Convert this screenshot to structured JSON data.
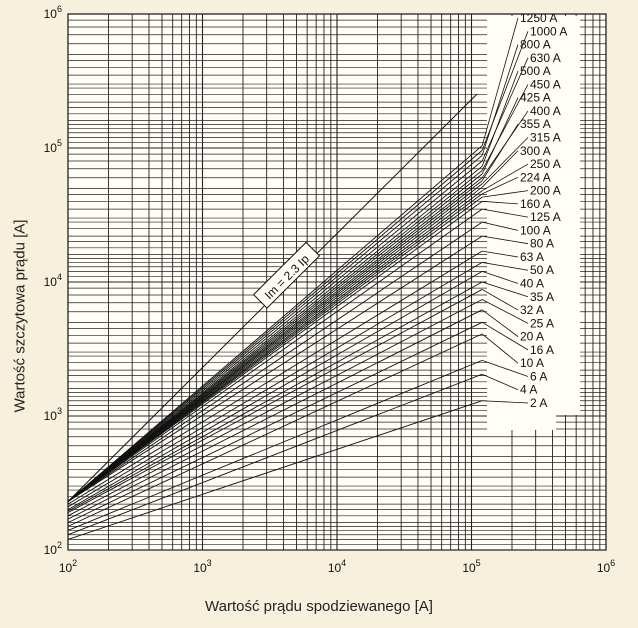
{
  "chart_data": {
    "type": "line",
    "title": "",
    "xlabel": "Wartość prądu spodziewanego [A]",
    "ylabel": "Wartość szczytowa prądu [A]",
    "xscale": "log",
    "yscale": "log",
    "xlim": [
      100,
      1000000
    ],
    "ylim": [
      100,
      1000000
    ],
    "grid": true,
    "x_ticks": [
      {
        "value": 100,
        "base": "10",
        "exp": "2"
      },
      {
        "value": 1000,
        "base": "10",
        "exp": "3"
      },
      {
        "value": 10000,
        "base": "10",
        "exp": "4"
      },
      {
        "value": 100000,
        "base": "10",
        "exp": "5"
      },
      {
        "value": 1000000,
        "base": "10",
        "exp": "6"
      }
    ],
    "y_ticks": [
      {
        "value": 100,
        "base": "10",
        "exp": "2"
      },
      {
        "value": 1000,
        "base": "10",
        "exp": "3"
      },
      {
        "value": 10000,
        "base": "10",
        "exp": "4"
      },
      {
        "value": 100000,
        "base": "10",
        "exp": "5"
      },
      {
        "value": 1000000,
        "base": "10",
        "exp": "6"
      }
    ],
    "reference_line": {
      "label": "Im = 2.3 Ip",
      "x": [
        100,
        110000
      ],
      "y": [
        230,
        253000
      ]
    },
    "series": [
      {
        "name": "1250 A",
        "x": [
          100,
          120000
        ],
        "y": [
          230,
          104000
        ]
      },
      {
        "name": "1000 A",
        "x": [
          100,
          120000
        ],
        "y": [
          230,
          96000
        ]
      },
      {
        "name": "800 A",
        "x": [
          100,
          120000
        ],
        "y": [
          230,
          88000
        ]
      },
      {
        "name": "630 A",
        "x": [
          100,
          120000
        ],
        "y": [
          230,
          80000
        ]
      },
      {
        "name": "500 A",
        "x": [
          100,
          120000
        ],
        "y": [
          230,
          73000
        ]
      },
      {
        "name": "450 A",
        "x": [
          100,
          120000
        ],
        "y": [
          230,
          68000
        ]
      },
      {
        "name": "425 A",
        "x": [
          100,
          120000
        ],
        "y": [
          230,
          64000
        ]
      },
      {
        "name": "400 A",
        "x": [
          100,
          120000
        ],
        "y": [
          230,
          60000
        ]
      },
      {
        "name": "355 A",
        "x": [
          100,
          120000
        ],
        "y": [
          230,
          57000
        ]
      },
      {
        "name": "315 A",
        "x": [
          100,
          120000
        ],
        "y": [
          230,
          54000
        ]
      },
      {
        "name": "300 A",
        "x": [
          100,
          120000
        ],
        "y": [
          230,
          51000
        ]
      },
      {
        "name": "250 A",
        "x": [
          100,
          120000
        ],
        "y": [
          230,
          48000
        ]
      },
      {
        "name": "224 A",
        "x": [
          100,
          120000
        ],
        "y": [
          230,
          45500
        ]
      },
      {
        "name": "200 A",
        "x": [
          100,
          120000
        ],
        "y": [
          230,
          43000
        ]
      },
      {
        "name": "160 A",
        "x": [
          100,
          120000
        ],
        "y": [
          230,
          40000
        ]
      },
      {
        "name": "125 A",
        "x": [
          100,
          120000
        ],
        "y": [
          230,
          35000
        ]
      },
      {
        "name": "100 A",
        "x": [
          100,
          120000
        ],
        "y": [
          230,
          28000
        ]
      },
      {
        "name": "80 A",
        "x": [
          100,
          120000
        ],
        "y": [
          230,
          22000
        ]
      },
      {
        "name": "63 A",
        "x": [
          100,
          120000
        ],
        "y": [
          220,
          17000
        ]
      },
      {
        "name": "50 A",
        "x": [
          100,
          120000
        ],
        "y": [
          210,
          14000
        ]
      },
      {
        "name": "40 A",
        "x": [
          100,
          120000
        ],
        "y": [
          200,
          12000
        ]
      },
      {
        "name": "35 A",
        "x": [
          100,
          120000
        ],
        "y": [
          195,
          10000
        ]
      },
      {
        "name": "32 A",
        "x": [
          100,
          120000
        ],
        "y": [
          190,
          8800
        ]
      },
      {
        "name": "25 A",
        "x": [
          100,
          120000
        ],
        "y": [
          180,
          7400
        ]
      },
      {
        "name": "20 A",
        "x": [
          100,
          120000
        ],
        "y": [
          170,
          6200
        ]
      },
      {
        "name": "16 A",
        "x": [
          100,
          120000
        ],
        "y": [
          160,
          5000
        ]
      },
      {
        "name": "10 A",
        "x": [
          100,
          120000
        ],
        "y": [
          150,
          4100
        ]
      },
      {
        "name": "6 A",
        "x": [
          100,
          120000
        ],
        "y": [
          140,
          2600
        ]
      },
      {
        "name": "4 A",
        "x": [
          100,
          120000
        ],
        "y": [
          130,
          2050
        ]
      },
      {
        "name": "2 A",
        "x": [
          100,
          120000
        ],
        "y": [
          120,
          1300
        ]
      }
    ]
  }
}
